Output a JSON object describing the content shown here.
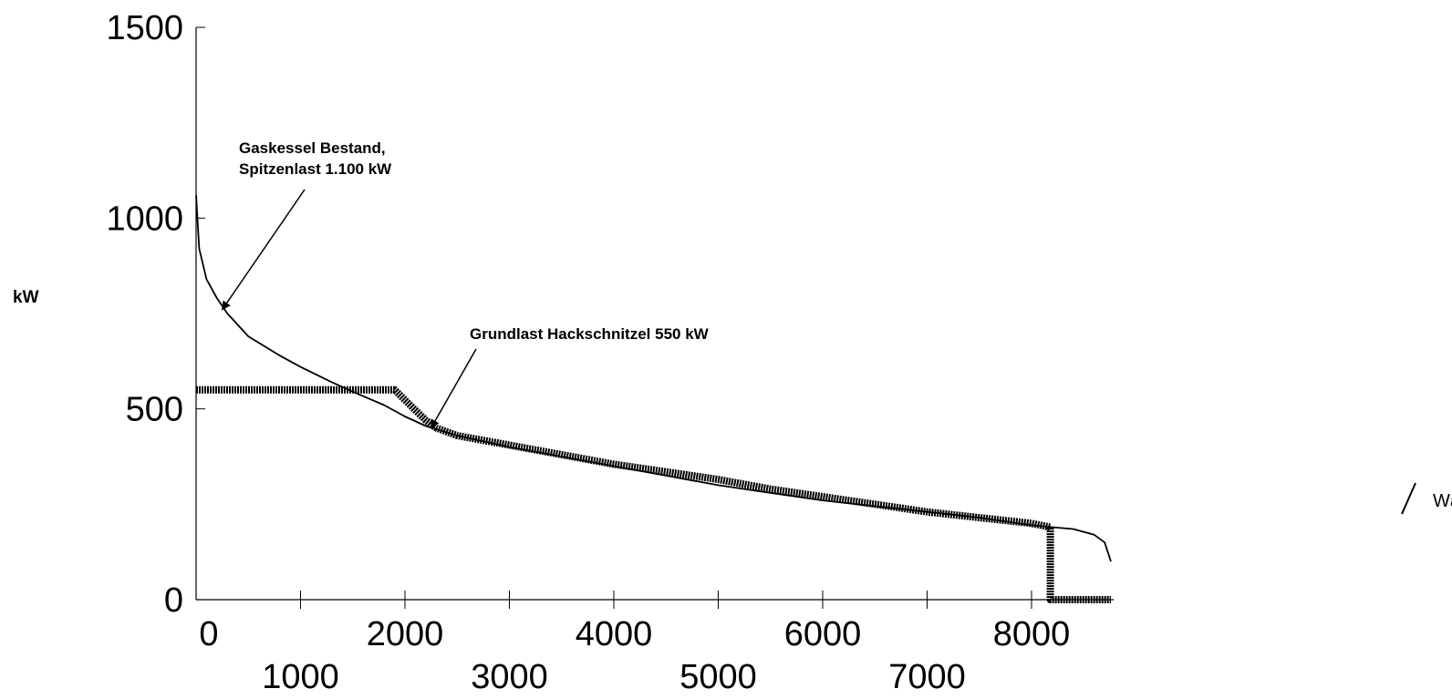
{
  "chart_data": {
    "type": "line",
    "ylabel": "kW",
    "ylim": [
      0,
      1500
    ],
    "xlim": [
      0,
      8760
    ],
    "yticks": [
      "0",
      "500",
      "1000",
      "1500"
    ],
    "xticks_upper": [
      "0",
      "2000",
      "4000",
      "6000",
      "8000"
    ],
    "xticks_lower": [
      "1000",
      "3000",
      "5000",
      "7000"
    ],
    "xtick_values_upper": [
      0,
      2000,
      4000,
      6000,
      8000
    ],
    "xtick_values_lower": [
      1000,
      3000,
      5000,
      7000
    ],
    "series": [
      {
        "name": "Wärmebedarf",
        "style": "thin",
        "points": [
          [
            0,
            1060
          ],
          [
            30,
            920
          ],
          [
            100,
            840
          ],
          [
            200,
            790
          ],
          [
            300,
            750
          ],
          [
            500,
            690
          ],
          [
            800,
            640
          ],
          [
            1000,
            610
          ],
          [
            1300,
            570
          ],
          [
            1500,
            545
          ],
          [
            1800,
            510
          ],
          [
            2000,
            480
          ],
          [
            2200,
            455
          ],
          [
            2500,
            430
          ],
          [
            3000,
            400
          ],
          [
            3500,
            375
          ],
          [
            4000,
            350
          ],
          [
            4500,
            325
          ],
          [
            5000,
            300
          ],
          [
            5500,
            280
          ],
          [
            6000,
            260
          ],
          [
            6500,
            245
          ],
          [
            7000,
            230
          ],
          [
            7500,
            215
          ],
          [
            8000,
            195
          ],
          [
            8200,
            190
          ],
          [
            8400,
            185
          ],
          [
            8600,
            170
          ],
          [
            8700,
            150
          ],
          [
            8760,
            100
          ]
        ]
      },
      {
        "name": "",
        "style": "thick",
        "points": [
          [
            0,
            550
          ],
          [
            1900,
            550
          ],
          [
            2050,
            510
          ],
          [
            2200,
            470
          ],
          [
            2300,
            450
          ],
          [
            2500,
            430
          ],
          [
            3000,
            405
          ],
          [
            3500,
            380
          ],
          [
            4000,
            355
          ],
          [
            4500,
            335
          ],
          [
            5000,
            315
          ],
          [
            5500,
            290
          ],
          [
            6000,
            270
          ],
          [
            6500,
            250
          ],
          [
            7000,
            230
          ],
          [
            7500,
            215
          ],
          [
            8000,
            200
          ],
          [
            8180,
            190
          ],
          [
            8180,
            0
          ],
          [
            8760,
            0
          ]
        ]
      }
    ],
    "annotations": [
      {
        "lines": [
          "Gaskessel  Bestand,",
          "Spitzenlast 1.100 kW"
        ],
        "arrow_target": [
          250,
          760
        ]
      },
      {
        "lines": [
          "Grundlast Hackschnitzel  550 kW"
        ],
        "arrow_target": [
          2250,
          450
        ]
      }
    ],
    "legend": {
      "label": "Wärmebedarf",
      "placement": "right"
    },
    "grid": false
  }
}
